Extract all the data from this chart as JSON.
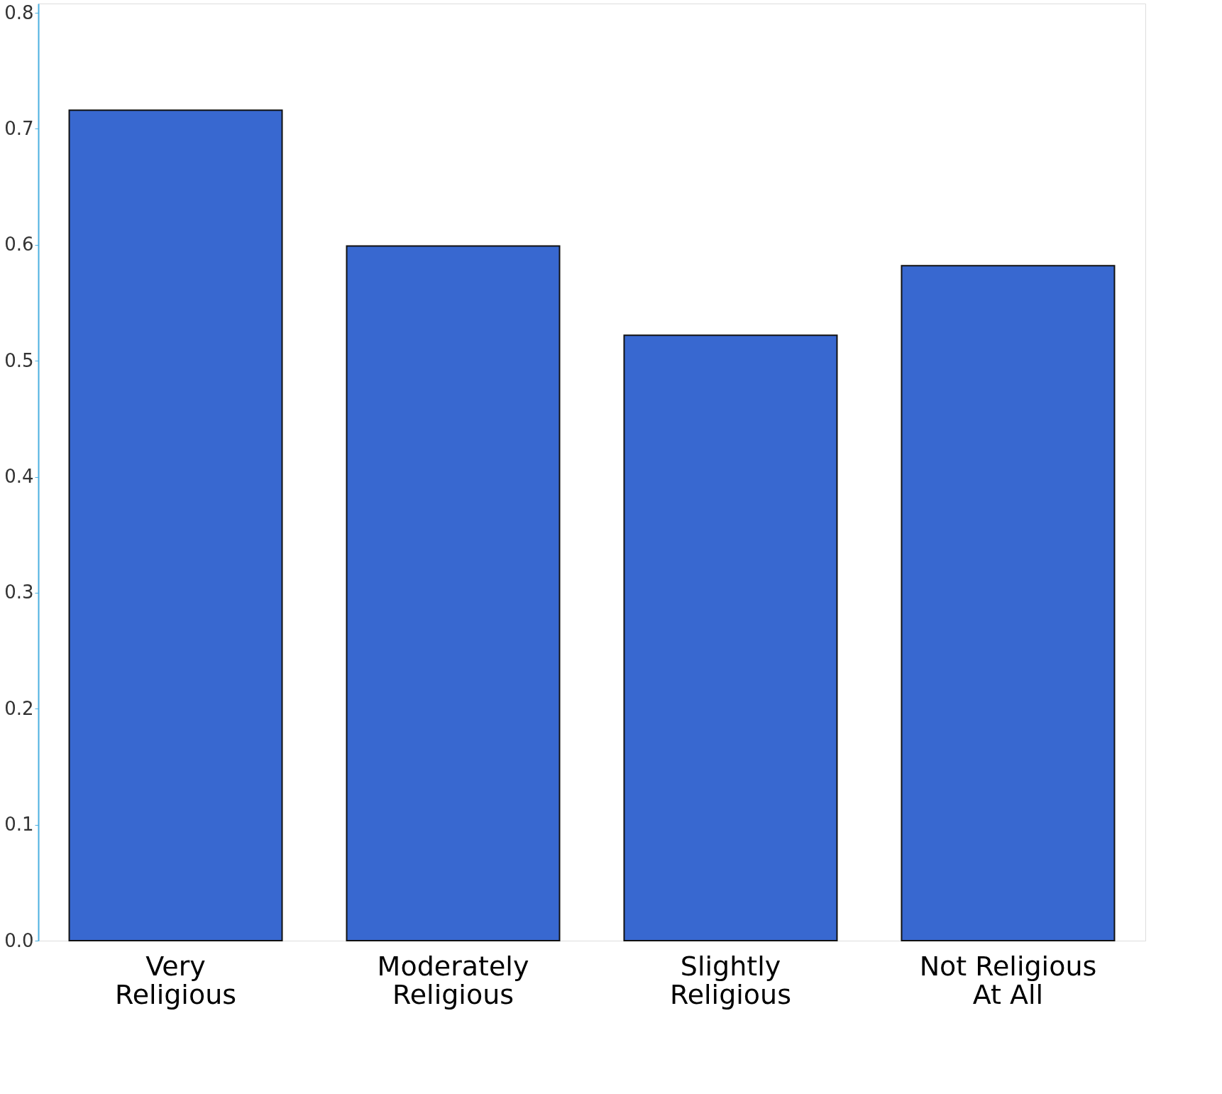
{
  "chart_data": {
    "type": "bar",
    "categories": [
      "Very Religious",
      "Moderately Religious",
      "Slightly Religious",
      "Not Religious At All"
    ],
    "values": [
      0.716,
      0.599,
      0.522,
      0.582
    ],
    "color": "#3868d0",
    "ylim": [
      0,
      0.808
    ],
    "yticks": [
      {
        "value": 0,
        "label": "0.0"
      },
      0.1,
      0.2,
      0.3,
      0.4,
      0.5,
      0.6,
      0.7,
      0.8
    ],
    "grid": false
  }
}
